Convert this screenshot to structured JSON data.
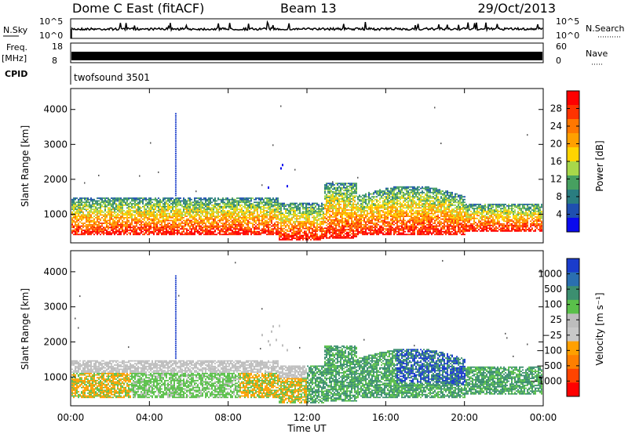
{
  "header": {
    "station": "Dome C East (fitACF)",
    "beam": "Beam 13",
    "date": "29/Oct/2013"
  },
  "top_panels": {
    "nsky": {
      "label": "N.Sky",
      "ticks": [
        "10^5",
        "10^0"
      ]
    },
    "nsearch": {
      "label": "N.Search",
      "ticks": [
        "10^5",
        "10^0"
      ]
    },
    "freq": {
      "label1": "Freq.",
      "label2": "[MHz]",
      "ticks": [
        "18",
        "8"
      ]
    },
    "nave": {
      "label": "Nave",
      "ticks": [
        "60",
        "0"
      ]
    },
    "cpid": {
      "label": "CPID",
      "value": "twofsound 3501"
    }
  },
  "chart_data": [
    {
      "type": "heatmap",
      "name": "power",
      "ylabel": "Slant Range [km]",
      "xlabel": "Time UT",
      "x_ticks": [
        "00:00",
        "04:00",
        "08:00",
        "12:00",
        "16:00",
        "20:00",
        "00:00"
      ],
      "y_ticks": [
        "1000",
        "2000",
        "3000",
        "4000"
      ],
      "ylim": [
        180,
        4600
      ],
      "colorbar_label": "Power [dB]",
      "colorbar_ticks": [
        "28",
        "24",
        "20",
        "16",
        "12",
        "8",
        "4"
      ],
      "colors": [
        "#ff0000",
        "#ff3300",
        "#ff7700",
        "#ffa000",
        "#ffd400",
        "#a8d84a",
        "#47a060",
        "#2a7d80",
        "#1f4fb0",
        "#0a0aee"
      ]
    },
    {
      "type": "heatmap",
      "name": "velocity",
      "ylabel": "Slant Range [km]",
      "xlabel": "Time UT",
      "x_ticks": [
        "00:00",
        "04:00",
        "08:00",
        "12:00",
        "16:00",
        "20:00",
        "00:00"
      ],
      "y_ticks": [
        "1000",
        "2000",
        "3000",
        "4000"
      ],
      "ylim": [
        180,
        4600
      ],
      "colorbar_label": "Velocity [m s⁻¹]",
      "colorbar_ticks": [
        "1000",
        "500",
        "100",
        "25",
        "−25",
        "−100",
        "−500",
        "−1000"
      ],
      "colors": [
        "#1a3ccc",
        "#2a6fb0",
        "#3c8f70",
        "#5ac04a",
        "#bdbdbd",
        "#c8c8c8",
        "#ffa000",
        "#ff7f00",
        "#ff4400",
        "#ff0000"
      ]
    }
  ]
}
